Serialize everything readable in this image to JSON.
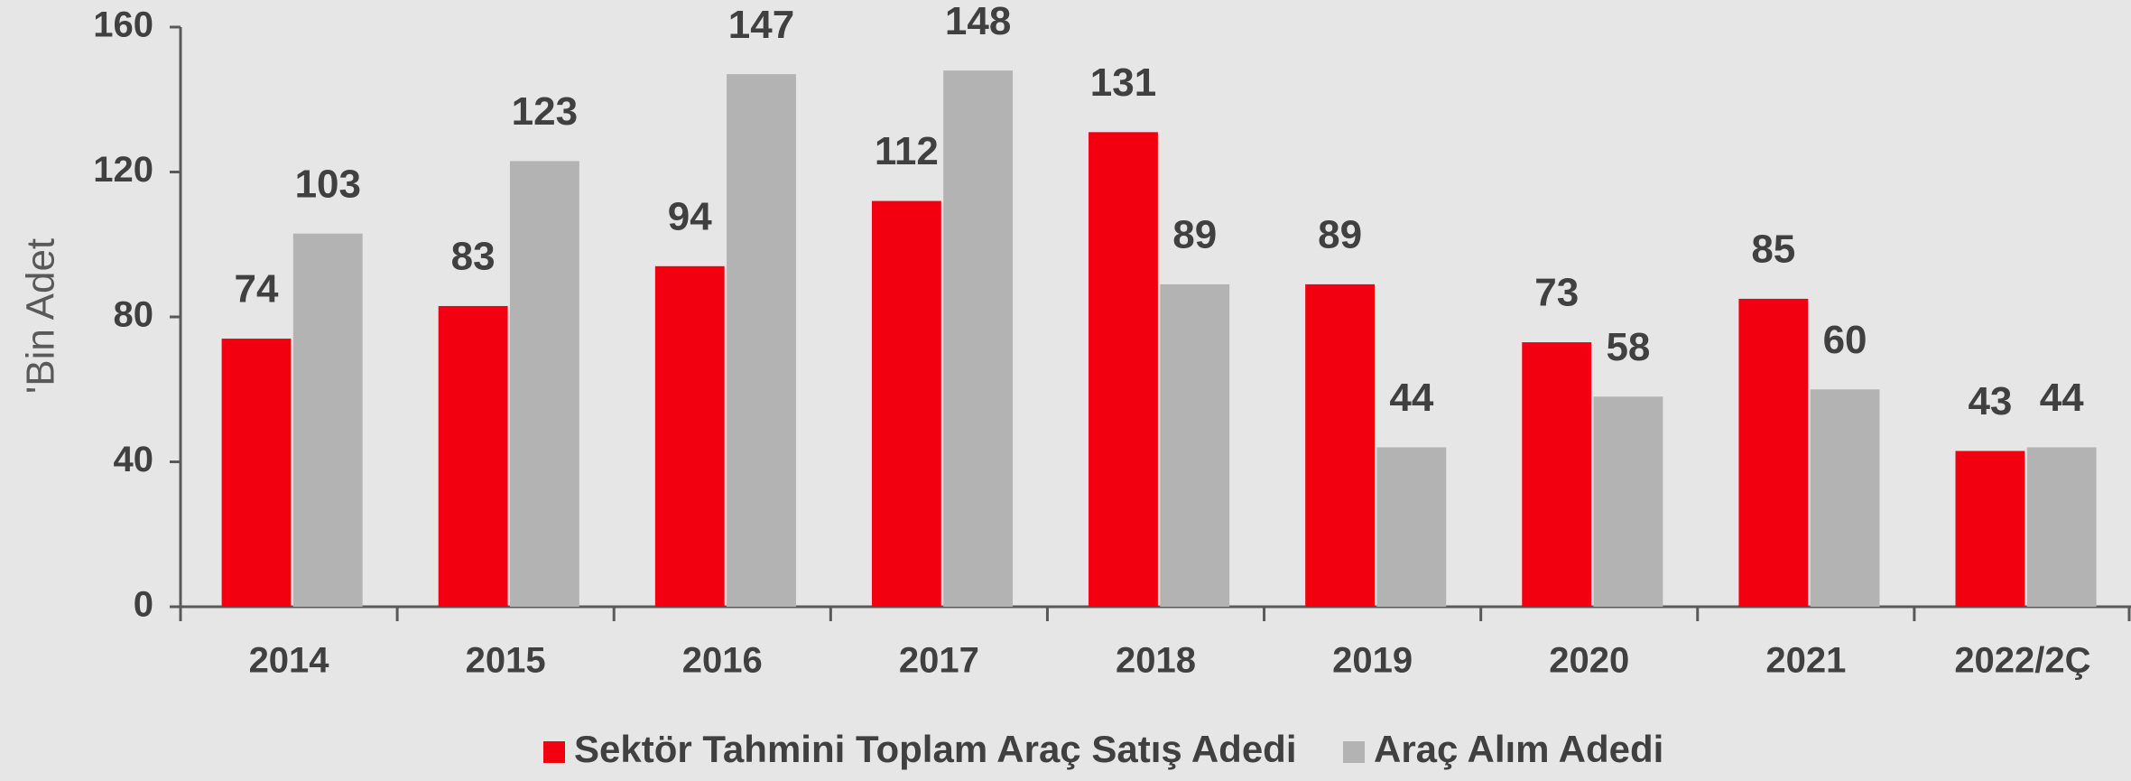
{
  "chart_data": {
    "type": "bar",
    "y_label": "'Bin Adet",
    "categories": [
      "2014",
      "2015",
      "2016",
      "2017",
      "2018",
      "2019",
      "2020",
      "2021",
      "2022/2Ç"
    ],
    "series": [
      {
        "name": "Sektör Tahmini Toplam Araç Satış Adedi",
        "color": "#f2000f",
        "values": [
          74,
          83,
          94,
          112,
          131,
          89,
          73,
          85,
          43
        ]
      },
      {
        "name": "Araç Alım Adedi",
        "color": "#b3b3b3",
        "values": [
          103,
          123,
          147,
          148,
          89,
          44,
          58,
          60,
          44
        ]
      }
    ],
    "ylim": [
      0,
      160
    ],
    "yticks": [
      0,
      40,
      80,
      120,
      160
    ],
    "grid": false,
    "legend": "bottom"
  }
}
